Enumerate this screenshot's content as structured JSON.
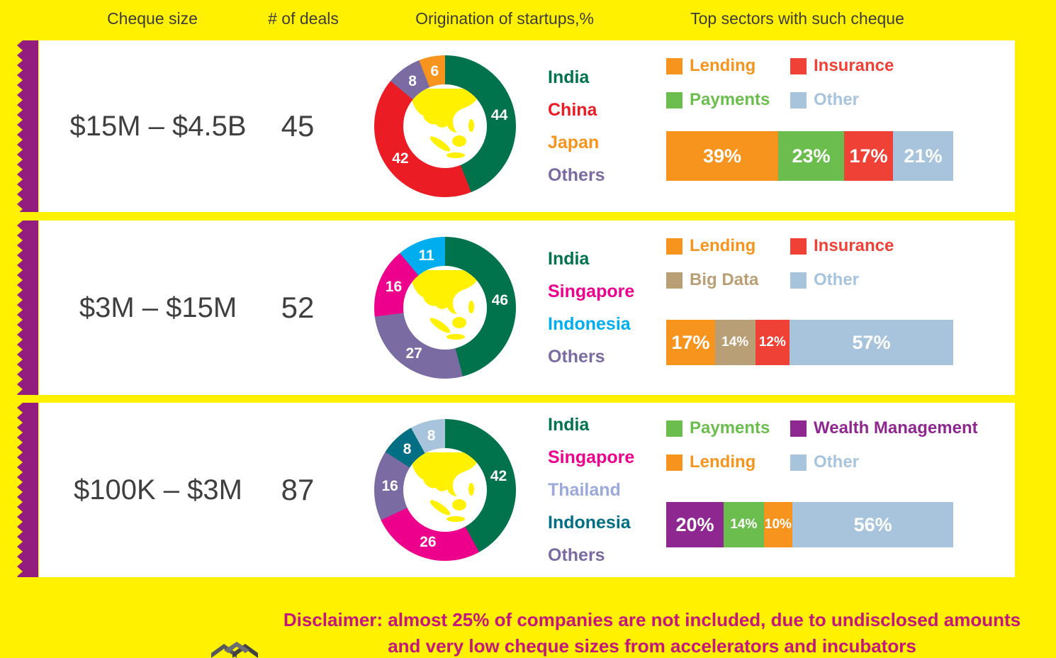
{
  "header": {
    "columns": [
      "Cheque size",
      "# of deals",
      "Origination of startups,%",
      "Top sectors with such cheque"
    ]
  },
  "rows": [
    {
      "cheque_size": "$15M – $4.5B",
      "deals": "45",
      "donut": {
        "segments": [
          {
            "label": "India",
            "value": 44,
            "color": "#00734C"
          },
          {
            "label": "China",
            "value": 42,
            "color": "#EC1C24"
          },
          {
            "label": "Others",
            "value": 8,
            "color": "#7B6BA3"
          },
          {
            "label": "Japan",
            "value": 6,
            "color": "#F7941E"
          }
        ]
      },
      "countries": [
        {
          "label": "India",
          "color": "#00734C"
        },
        {
          "label": "China",
          "color": "#EC1C24"
        },
        {
          "label": "Japan",
          "color": "#F7941E"
        },
        {
          "label": "Others",
          "color": "#7B6BA3"
        }
      ],
      "legend": [
        {
          "label": "Lending",
          "color": "#F7941E"
        },
        {
          "label": "Insurance",
          "color": "#EF4136"
        },
        {
          "label": "Payments",
          "color": "#6BBE4D"
        },
        {
          "label": "Other",
          "color": "#A7C4DC"
        }
      ],
      "bar": [
        {
          "label": "39%",
          "value": 39,
          "color": "#F7941E"
        },
        {
          "label": "23%",
          "value": 23,
          "color": "#6BBE4D"
        },
        {
          "label": "17%",
          "value": 17,
          "color": "#EF4136"
        },
        {
          "label": "21%",
          "value": 21,
          "color": "#A7C4DC"
        }
      ]
    },
    {
      "cheque_size": "$3M – $15M",
      "deals": "52",
      "donut": {
        "segments": [
          {
            "label": "India",
            "value": 46,
            "color": "#00734C"
          },
          {
            "label": "Others",
            "value": 27,
            "color": "#7B6BA3"
          },
          {
            "label": "Singapore",
            "value": 16,
            "color": "#EC008C"
          },
          {
            "label": "Indonesia",
            "value": 11,
            "color": "#00AEEF"
          }
        ]
      },
      "countries": [
        {
          "label": "India",
          "color": "#00734C"
        },
        {
          "label": "Singapore",
          "color": "#EC008C"
        },
        {
          "label": "Indonesia",
          "color": "#00AEEF"
        },
        {
          "label": "Others",
          "color": "#7B6BA3"
        }
      ],
      "legend": [
        {
          "label": "Lending",
          "color": "#F7941E"
        },
        {
          "label": "Insurance",
          "color": "#EF4136"
        },
        {
          "label": "Big Data",
          "color": "#B99F76"
        },
        {
          "label": "Other",
          "color": "#A7C4DC"
        }
      ],
      "bar": [
        {
          "label": "17%",
          "value": 17,
          "color": "#F7941E"
        },
        {
          "label": "14%",
          "value": 14,
          "color": "#B99F76"
        },
        {
          "label": "12%",
          "value": 12,
          "color": "#EF4136"
        },
        {
          "label": "57%",
          "value": 57,
          "color": "#A7C4DC"
        }
      ]
    },
    {
      "cheque_size": "$100K – $3M",
      "deals": "87",
      "donut": {
        "segments": [
          {
            "label": "India",
            "value": 42,
            "color": "#00734C"
          },
          {
            "label": "Singapore",
            "value": 26,
            "color": "#EC008C"
          },
          {
            "label": "Others",
            "value": 16,
            "color": "#7B6BA3"
          },
          {
            "label": "Indonesia",
            "value": 8,
            "color": "#006F83"
          },
          {
            "label": "Thailand",
            "value": 8,
            "color": "#A7C4DC"
          }
        ]
      },
      "countries": [
        {
          "label": "India",
          "color": "#00734C"
        },
        {
          "label": "Singapore",
          "color": "#EC008C"
        },
        {
          "label": "Thailand",
          "color": "#9BA9DB"
        },
        {
          "label": "Indonesia",
          "color": "#006F83"
        },
        {
          "label": "Others",
          "color": "#7B6BA3"
        }
      ],
      "legend": [
        {
          "label": "Payments",
          "color": "#6BBE4D"
        },
        {
          "label": "Wealth Management",
          "color": "#8F2790"
        },
        {
          "label": "Lending",
          "color": "#F7941E"
        },
        {
          "label": "Other",
          "color": "#A7C4DC"
        }
      ],
      "bar": [
        {
          "label": "20%",
          "value": 20,
          "color": "#8F2790"
        },
        {
          "label": "14%",
          "value": 14,
          "color": "#6BBE4D"
        },
        {
          "label": "10%",
          "value": 10,
          "color": "#F7941E"
        },
        {
          "label": "56%",
          "value": 56,
          "color": "#A7C4DC"
        }
      ]
    }
  ],
  "disclaimer": {
    "line1": "Disclaimer: almost 25% of companies are not included, due to undisclosed amounts",
    "line2": "and very low cheque sizes from accelerators and incubators"
  },
  "chart_data": [
    {
      "type": "pie",
      "title": "$15M – $4.5B — Origination of startups,% (45 deals)",
      "labels": [
        "India",
        "China",
        "Others",
        "Japan"
      ],
      "values": [
        44,
        42,
        8,
        6
      ]
    },
    {
      "type": "bar",
      "title": "$15M – $4.5B — Top sectors with such cheque",
      "categories": [
        "Lending",
        "Payments",
        "Insurance",
        "Other"
      ],
      "values": [
        39,
        23,
        17,
        21
      ]
    },
    {
      "type": "pie",
      "title": "$3M – $15M — Origination of startups,% (52 deals)",
      "labels": [
        "India",
        "Others",
        "Singapore",
        "Indonesia"
      ],
      "values": [
        46,
        27,
        16,
        11
      ]
    },
    {
      "type": "bar",
      "title": "$3M – $15M — Top sectors with such cheque",
      "categories": [
        "Lending",
        "Big Data",
        "Insurance",
        "Other"
      ],
      "values": [
        17,
        14,
        12,
        57
      ]
    },
    {
      "type": "pie",
      "title": "$100K – $3M — Origination of startups,% (87 deals)",
      "labels": [
        "India",
        "Singapore",
        "Others",
        "Indonesia",
        "Thailand"
      ],
      "values": [
        42,
        26,
        16,
        8,
        8
      ]
    },
    {
      "type": "bar",
      "title": "$100K – $3M — Top sectors with such cheque",
      "categories": [
        "Wealth Management",
        "Payments",
        "Lending",
        "Other"
      ],
      "values": [
        20,
        14,
        10,
        56
      ]
    }
  ]
}
